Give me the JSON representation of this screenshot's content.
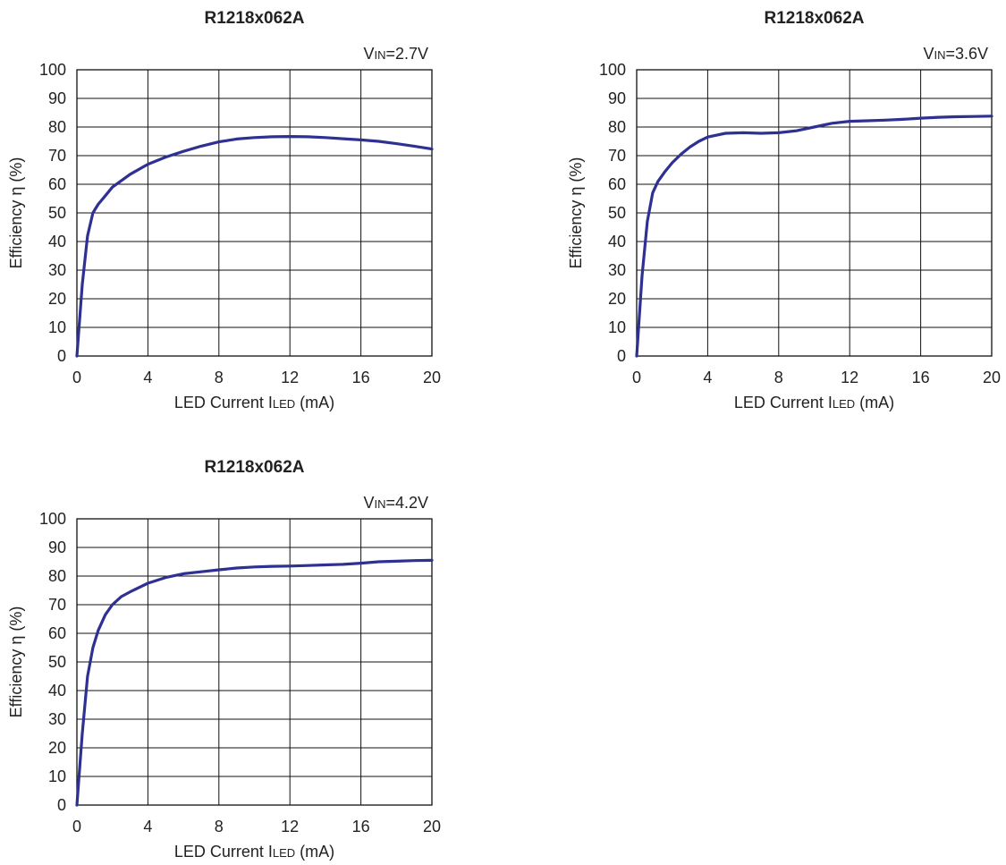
{
  "chart_data": [
    {
      "type": "line",
      "title": "R1218x062A",
      "condition": {
        "prefix": "V",
        "sub": "IN",
        "value": "=2.7V"
      },
      "xlabel": {
        "main": "LED Current I",
        "sub": "LED",
        "unit": " (mA)"
      },
      "ylabel": "Efficiency η (%)",
      "xlim": [
        0,
        20
      ],
      "ylim": [
        0,
        100
      ],
      "xticks": [
        0,
        4,
        8,
        12,
        16,
        20
      ],
      "yticks": [
        0,
        10,
        20,
        30,
        40,
        50,
        60,
        70,
        80,
        90,
        100
      ],
      "grid": true,
      "line_color": "#2e3192",
      "x": [
        0,
        0.3,
        0.6,
        0.9,
        1.2,
        1.6,
        2,
        3,
        4,
        5,
        6,
        7,
        8,
        9,
        10,
        11,
        12,
        13,
        14,
        15,
        16,
        17,
        18,
        19,
        20
      ],
      "y": [
        0,
        25,
        42,
        50,
        53,
        56,
        59,
        63.5,
        67,
        69.5,
        71.5,
        73.3,
        74.8,
        75.8,
        76.3,
        76.6,
        76.7,
        76.6,
        76.3,
        75.9,
        75.5,
        75,
        74.2,
        73.3,
        72.3
      ]
    },
    {
      "type": "line",
      "title": "R1218x062A",
      "condition": {
        "prefix": "V",
        "sub": "IN",
        "value": "=3.6V"
      },
      "xlabel": {
        "main": "LED Current I",
        "sub": "LED",
        "unit": " (mA)"
      },
      "ylabel": "Efficiency η (%)",
      "xlim": [
        0,
        20
      ],
      "ylim": [
        0,
        100
      ],
      "xticks": [
        0,
        4,
        8,
        12,
        16,
        20
      ],
      "yticks": [
        0,
        10,
        20,
        30,
        40,
        50,
        60,
        70,
        80,
        90,
        100
      ],
      "grid": true,
      "line_color": "#2e3192",
      "x": [
        0,
        0.3,
        0.6,
        0.9,
        1.2,
        1.6,
        2,
        2.5,
        3,
        3.5,
        4,
        5,
        6,
        7,
        8,
        9,
        10,
        11,
        12,
        13,
        14,
        15,
        16,
        17,
        18,
        19,
        20
      ],
      "y": [
        0,
        28,
        47,
        57,
        61,
        64.5,
        67.5,
        70.5,
        73,
        75,
        76.5,
        77.8,
        78,
        77.8,
        78,
        78.7,
        80,
        81.3,
        82,
        82.2,
        82.4,
        82.7,
        83.1,
        83.4,
        83.6,
        83.7,
        83.8
      ]
    },
    {
      "type": "line",
      "title": "R1218x062A",
      "condition": {
        "prefix": "V",
        "sub": "IN",
        "value": "=4.2V"
      },
      "xlabel": {
        "main": "LED Current I",
        "sub": "LED",
        "unit": " (mA)"
      },
      "ylabel": "Efficiency η (%)",
      "xlim": [
        0,
        20
      ],
      "ylim": [
        0,
        100
      ],
      "xticks": [
        0,
        4,
        8,
        12,
        16,
        20
      ],
      "yticks": [
        0,
        10,
        20,
        30,
        40,
        50,
        60,
        70,
        80,
        90,
        100
      ],
      "grid": true,
      "line_color": "#2e3192",
      "x": [
        0,
        0.3,
        0.6,
        0.9,
        1.2,
        1.6,
        2,
        2.5,
        3,
        4,
        5,
        6,
        7,
        8,
        9,
        10,
        11,
        12,
        13,
        14,
        15,
        16,
        17,
        18,
        19,
        20
      ],
      "y": [
        0,
        25,
        45,
        55,
        61,
        66.5,
        70,
        72.8,
        74.5,
        77.5,
        79.5,
        80.8,
        81.5,
        82.2,
        82.8,
        83.2,
        83.4,
        83.5,
        83.7,
        83.9,
        84.1,
        84.5,
        85,
        85.2,
        85.4,
        85.5
      ]
    }
  ]
}
